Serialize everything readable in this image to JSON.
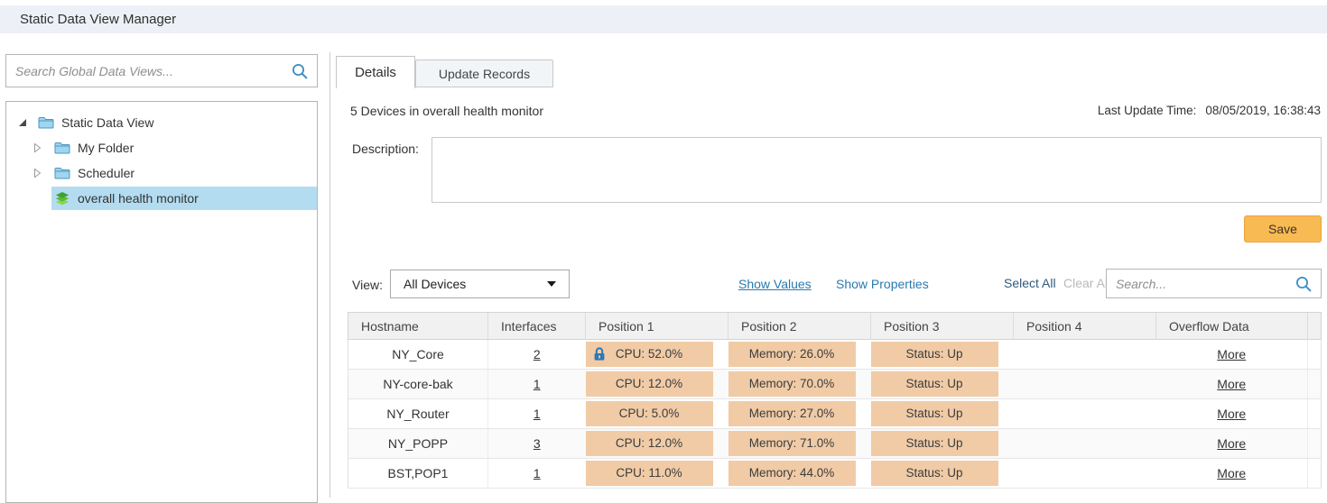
{
  "header": {
    "title": "Static Data View Manager"
  },
  "sidebar": {
    "search_placeholder": "Search Global Data Views...",
    "tree": [
      {
        "label": "Static Data View",
        "level": 0,
        "state": "expanded",
        "icon": "folder",
        "selected": false
      },
      {
        "label": "My Folder",
        "level": 1,
        "state": "collapsed",
        "icon": "folder",
        "selected": false
      },
      {
        "label": "Scheduler",
        "level": 1,
        "state": "collapsed",
        "icon": "folder",
        "selected": false
      },
      {
        "label": "overall health monitor",
        "level": 1,
        "state": "leaf",
        "icon": "layers",
        "selected": true
      }
    ]
  },
  "tabs": [
    {
      "label": "Details",
      "active": true
    },
    {
      "label": "Update Records",
      "active": false
    }
  ],
  "details": {
    "summary": "5 Devices in overall health monitor",
    "last_update_label": "Last Update Time:",
    "last_update_value": "08/05/2019, 16:38:43",
    "description_label": "Description:",
    "description_value": "",
    "save_label": "Save"
  },
  "filter_bar": {
    "view_label": "View:",
    "view_selected": "All Devices",
    "show_values": "Show Values",
    "show_properties": "Show Properties",
    "select_all": "Select All",
    "clear_all": "Clear All",
    "search_placeholder": "Search..."
  },
  "table": {
    "columns": [
      "Hostname",
      "Interfaces",
      "Position 1",
      "Position 2",
      "Position 3",
      "Position 4",
      "Overflow Data"
    ],
    "rows": [
      {
        "hostname": "NY_Core",
        "interfaces": "2",
        "position1": "CPU: 52.0%",
        "position1_locked": true,
        "position2": "Memory: 26.0%",
        "position3": "Status: Up",
        "position4": "",
        "overflow": "More"
      },
      {
        "hostname": "NY-core-bak",
        "interfaces": "1",
        "position1": "CPU: 12.0%",
        "position1_locked": false,
        "position2": "Memory: 70.0%",
        "position3": "Status: Up",
        "position4": "",
        "overflow": "More"
      },
      {
        "hostname": "NY_Router",
        "interfaces": "1",
        "position1": "CPU: 5.0%",
        "position1_locked": false,
        "position2": "Memory: 27.0%",
        "position3": "Status: Up",
        "position4": "",
        "overflow": "More"
      },
      {
        "hostname": "NY_POPP",
        "interfaces": "3",
        "position1": "CPU: 12.0%",
        "position1_locked": false,
        "position2": "Memory: 71.0%",
        "position3": "Status: Up",
        "position4": "",
        "overflow": "More"
      },
      {
        "hostname": "BST,POP1",
        "interfaces": "1",
        "position1": "CPU: 11.0%",
        "position1_locked": false,
        "position2": "Memory: 44.0%",
        "position3": "Status: Up",
        "position4": "",
        "overflow": "More"
      }
    ]
  },
  "colors": {
    "topbar_bg": "#edf1f7",
    "selection_blue": "#b4dcf0",
    "link_blue": "#2a7ab0",
    "save_orange": "#f8ba52",
    "chip_tan": "#f0cba6",
    "lock_blue": "#2e77b5",
    "icon_blue": "#3a8fc7",
    "tree_green": "#4caf3c"
  }
}
